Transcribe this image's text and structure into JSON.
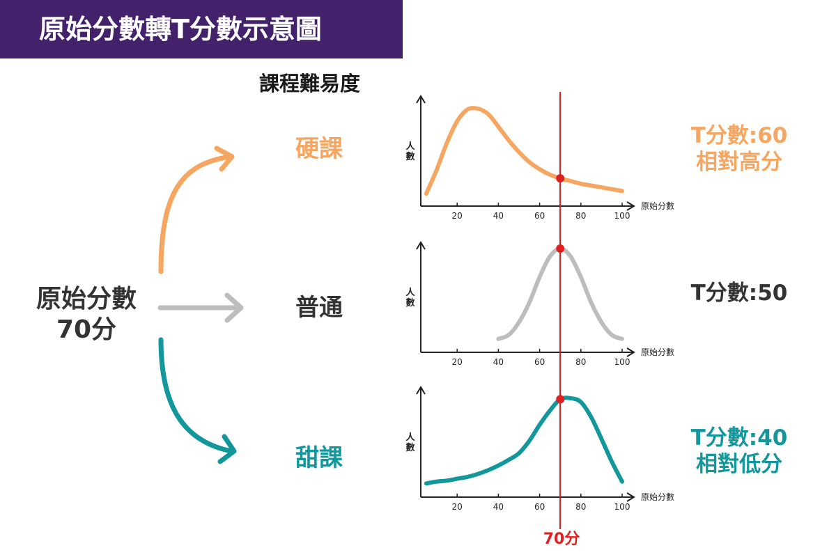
{
  "title": "原始分數轉T分數示意圖",
  "difficulty_heading": "課程難易度",
  "raw_score": {
    "line1": "原始分數",
    "line2": "70分"
  },
  "marker_label": "70分",
  "colors": {
    "banner": "#43226b",
    "hard": "#f6a661",
    "normal": "#bdbdbd",
    "easy": "#12979c",
    "marker": "#e02020"
  },
  "courses": [
    {
      "key": "hard",
      "label": "硬課",
      "tscore": "T分數:60",
      "note": "相對高分"
    },
    {
      "key": "normal",
      "label": "普通",
      "tscore": "T分數:50",
      "note": ""
    },
    {
      "key": "easy",
      "label": "甜課",
      "tscore": "T分數:40",
      "note": "相對低分"
    }
  ],
  "chart_data": [
    {
      "type": "line",
      "xlabel": "原始分數",
      "ylabel": "人數",
      "x_ticks": [
        20,
        40,
        60,
        80,
        100
      ],
      "x": [
        5,
        10,
        15,
        20,
        25,
        30,
        35,
        40,
        45,
        50,
        55,
        60,
        65,
        70,
        75,
        80,
        85,
        90,
        95,
        100
      ],
      "series": [
        {
          "values": [
            0.06,
            0.32,
            0.62,
            0.86,
            0.99,
            1.0,
            0.94,
            0.8,
            0.65,
            0.52,
            0.41,
            0.33,
            0.27,
            0.23,
            0.2,
            0.17,
            0.15,
            0.13,
            0.11,
            0.09
          ]
        }
      ],
      "highlight": {
        "x": 70,
        "y": 0.23
      }
    },
    {
      "type": "line",
      "xlabel": "原始分數",
      "ylabel": "人數",
      "x_ticks": [
        20,
        40,
        60,
        80,
        100
      ],
      "x": [
        40,
        45,
        50,
        55,
        60,
        65,
        70,
        75,
        80,
        85,
        90,
        95,
        100
      ],
      "series": [
        {
          "values": [
            0.08,
            0.12,
            0.25,
            0.45,
            0.71,
            0.92,
            1.0,
            0.92,
            0.71,
            0.45,
            0.25,
            0.12,
            0.08
          ]
        }
      ],
      "highlight": {
        "x": 70,
        "y": 1.0
      }
    },
    {
      "type": "line",
      "xlabel": "原始分數",
      "ylabel": "人數",
      "x_ticks": [
        20,
        40,
        60,
        80,
        100
      ],
      "x": [
        5,
        10,
        15,
        20,
        25,
        30,
        35,
        40,
        45,
        50,
        55,
        60,
        65,
        70,
        75,
        80,
        85,
        90,
        95,
        100
      ],
      "series": [
        {
          "values": [
            0.1,
            0.12,
            0.13,
            0.15,
            0.17,
            0.2,
            0.24,
            0.29,
            0.35,
            0.42,
            0.55,
            0.72,
            0.87,
            0.99,
            1.0,
            0.96,
            0.8,
            0.57,
            0.33,
            0.12
          ]
        }
      ],
      "highlight": {
        "x": 70,
        "y": 0.99
      }
    }
  ]
}
